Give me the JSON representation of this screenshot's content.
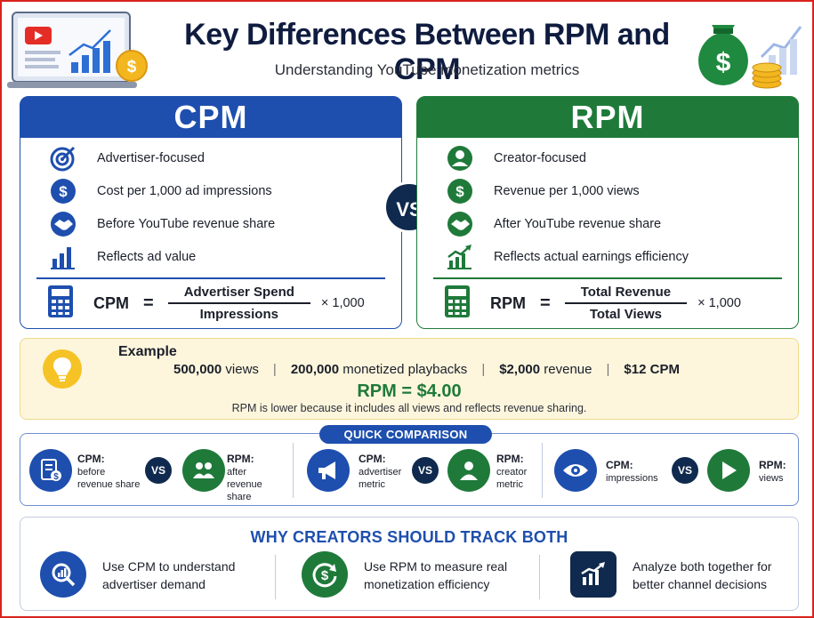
{
  "header": {
    "title": "Key Differences Between RPM and CPM",
    "subtitle": "Understanding YouTube monetization metrics"
  },
  "cpm": {
    "heading": "CPM",
    "features": [
      {
        "icon": "target-icon",
        "label": "Advertiser-focused"
      },
      {
        "icon": "dollar-icon",
        "label": "Cost per 1,000 ad impressions"
      },
      {
        "icon": "handshake-icon",
        "label": "Before YouTube revenue share"
      },
      {
        "icon": "bar-chart-icon",
        "label": "Reflects ad value"
      }
    ],
    "formula": {
      "name": "CPM",
      "eq": "=",
      "numerator": "Advertiser Spend",
      "denominator": "Impressions",
      "multiplier": "× 1,000"
    }
  },
  "vs_label": "VS",
  "rpm": {
    "heading": "RPM",
    "features": [
      {
        "icon": "person-icon",
        "label": "Creator-focused"
      },
      {
        "icon": "dollar-icon",
        "label": "Revenue per 1,000 views"
      },
      {
        "icon": "handshake-icon",
        "label": "After YouTube revenue share"
      },
      {
        "icon": "growth-chart-icon",
        "label": "Reflects actual earnings efficiency"
      }
    ],
    "formula": {
      "name": "RPM",
      "eq": "=",
      "numerator": "Total Revenue",
      "denominator": "Total Views",
      "multiplier": "× 1,000"
    }
  },
  "example": {
    "title": "Example",
    "items": [
      {
        "value": "500,000",
        "label": "views"
      },
      {
        "value": "200,000",
        "label": "monetized playbacks"
      },
      {
        "value": "$2,000",
        "label": "revenue"
      },
      {
        "value": "$12",
        "label": "CPM"
      }
    ],
    "separator": "|",
    "result": "RPM = $4.00",
    "note": "RPM is lower because it includes all views and reflects revenue sharing."
  },
  "quick_comparison": {
    "badge": "QUICK COMPARISON",
    "groups": [
      {
        "left_title": "CPM:",
        "left_desc_1": "before",
        "left_desc_2": "revenue share",
        "right_title": "RPM:",
        "right_desc_1": "after",
        "right_desc_2": "revenue share",
        "left_icon": "receipt-dollar-icon",
        "right_icon": "people-icon"
      },
      {
        "left_title": "CPM:",
        "left_desc_1": "advertiser",
        "left_desc_2": "metric",
        "right_title": "RPM:",
        "right_desc_1": "creator",
        "right_desc_2": "metric",
        "left_icon": "megaphone-icon",
        "right_icon": "person-icon"
      },
      {
        "left_title": "CPM:",
        "left_desc_1": "impressions",
        "left_desc_2": "",
        "right_title": "RPM:",
        "right_desc_1": "views",
        "right_desc_2": "",
        "left_icon": "eye-icon",
        "right_icon": "play-icon"
      }
    ]
  },
  "why": {
    "title": "WHY CREATORS SHOULD TRACK BOTH",
    "items": [
      {
        "icon": "magnify-chart-icon",
        "line1": "Use CPM to understand",
        "line2": "advertiser demand"
      },
      {
        "icon": "dollar-cycle-icon",
        "line1": "Use RPM to measure real",
        "line2": "monetization efficiency"
      },
      {
        "icon": "growth-chart-icon",
        "line1": "Analyze both together for",
        "line2": "better channel decisions"
      }
    ]
  },
  "colors": {
    "cpm_blue": "#1e4fae",
    "rpm_green": "#1f7a3a",
    "navy": "#0f2a4e",
    "example_bg": "#fdf6dd",
    "frame_red": "#d9231d"
  }
}
